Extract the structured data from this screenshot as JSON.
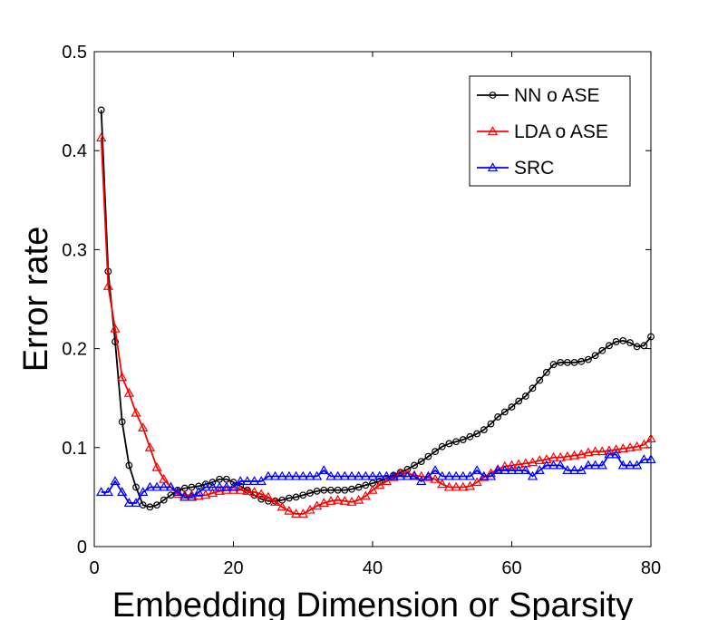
{
  "chart_data": {
    "type": "line",
    "title": "",
    "xlabel": "Embedding Dimension or Sparsity",
    "ylabel": "Error rate",
    "xlim": [
      0,
      80
    ],
    "ylim": [
      0,
      0.5
    ],
    "xticks": [
      0,
      20,
      40,
      60,
      80
    ],
    "yticks": [
      0,
      0.1,
      0.2,
      0.3,
      0.4,
      0.5
    ],
    "xtick_labels": [
      "0",
      "20",
      "40",
      "60",
      "80"
    ],
    "ytick_labels": [
      "0",
      "0.1",
      "0.2",
      "0.3",
      "0.4",
      "0.5"
    ],
    "grid": false,
    "legend_position": "top-right",
    "x": [
      1,
      2,
      3,
      4,
      5,
      6,
      7,
      8,
      9,
      10,
      11,
      12,
      13,
      14,
      15,
      16,
      17,
      18,
      19,
      20,
      21,
      22,
      23,
      24,
      25,
      26,
      27,
      28,
      29,
      30,
      31,
      32,
      33,
      34,
      35,
      36,
      37,
      38,
      39,
      40,
      41,
      42,
      43,
      44,
      45,
      46,
      47,
      48,
      49,
      50,
      51,
      52,
      53,
      54,
      55,
      56,
      57,
      58,
      59,
      60,
      61,
      62,
      63,
      64,
      65,
      66,
      67,
      68,
      69,
      70,
      71,
      72,
      73,
      74,
      75,
      76,
      77,
      78,
      79,
      80
    ],
    "series": [
      {
        "name": "NN o ASE",
        "color": "#000000",
        "marker": "circle",
        "values": [
          0.441,
          0.278,
          0.207,
          0.126,
          0.082,
          0.06,
          0.042,
          0.04,
          0.042,
          0.047,
          0.052,
          0.057,
          0.059,
          0.06,
          0.061,
          0.063,
          0.065,
          0.068,
          0.068,
          0.065,
          0.061,
          0.057,
          0.052,
          0.048,
          0.046,
          0.046,
          0.047,
          0.049,
          0.05,
          0.052,
          0.054,
          0.056,
          0.057,
          0.057,
          0.057,
          0.057,
          0.058,
          0.06,
          0.062,
          0.064,
          0.066,
          0.069,
          0.072,
          0.075,
          0.078,
          0.082,
          0.086,
          0.091,
          0.096,
          0.101,
          0.104,
          0.106,
          0.108,
          0.111,
          0.114,
          0.118,
          0.124,
          0.131,
          0.136,
          0.141,
          0.147,
          0.152,
          0.16,
          0.168,
          0.176,
          0.184,
          0.186,
          0.186,
          0.186,
          0.187,
          0.189,
          0.193,
          0.198,
          0.203,
          0.207,
          0.208,
          0.206,
          0.202,
          0.203,
          0.212
        ]
      },
      {
        "name": "LDA o ASE",
        "color": "#ff0000",
        "marker": "triangle",
        "values": [
          0.413,
          0.263,
          0.22,
          0.171,
          0.155,
          0.135,
          0.12,
          0.1,
          0.08,
          0.068,
          0.06,
          0.053,
          0.052,
          0.052,
          0.051,
          0.052,
          0.054,
          0.056,
          0.057,
          0.057,
          0.057,
          0.056,
          0.055,
          0.053,
          0.05,
          0.045,
          0.04,
          0.036,
          0.033,
          0.033,
          0.037,
          0.041,
          0.044,
          0.046,
          0.047,
          0.046,
          0.045,
          0.047,
          0.051,
          0.057,
          0.062,
          0.066,
          0.07,
          0.074,
          0.074,
          0.072,
          0.071,
          0.07,
          0.068,
          0.063,
          0.06,
          0.06,
          0.06,
          0.061,
          0.065,
          0.07,
          0.074,
          0.078,
          0.081,
          0.082,
          0.083,
          0.084,
          0.085,
          0.087,
          0.088,
          0.09,
          0.09,
          0.091,
          0.092,
          0.093,
          0.095,
          0.096,
          0.096,
          0.097,
          0.098,
          0.099,
          0.1,
          0.101,
          0.103,
          0.109
        ]
      },
      {
        "name": "SRC",
        "color": "#0000ff",
        "marker": "triangle",
        "values": [
          0.055,
          0.055,
          0.066,
          0.055,
          0.044,
          0.044,
          0.055,
          0.06,
          0.06,
          0.06,
          0.06,
          0.055,
          0.05,
          0.05,
          0.055,
          0.06,
          0.06,
          0.06,
          0.06,
          0.06,
          0.066,
          0.066,
          0.066,
          0.066,
          0.071,
          0.071,
          0.071,
          0.071,
          0.071,
          0.071,
          0.071,
          0.071,
          0.077,
          0.071,
          0.071,
          0.071,
          0.071,
          0.071,
          0.071,
          0.071,
          0.071,
          0.071,
          0.071,
          0.071,
          0.071,
          0.071,
          0.066,
          0.071,
          0.077,
          0.071,
          0.071,
          0.071,
          0.071,
          0.071,
          0.077,
          0.071,
          0.071,
          0.077,
          0.077,
          0.077,
          0.077,
          0.077,
          0.071,
          0.077,
          0.082,
          0.082,
          0.082,
          0.077,
          0.077,
          0.077,
          0.082,
          0.082,
          0.082,
          0.093,
          0.093,
          0.082,
          0.082,
          0.082,
          0.088,
          0.088
        ]
      }
    ]
  }
}
